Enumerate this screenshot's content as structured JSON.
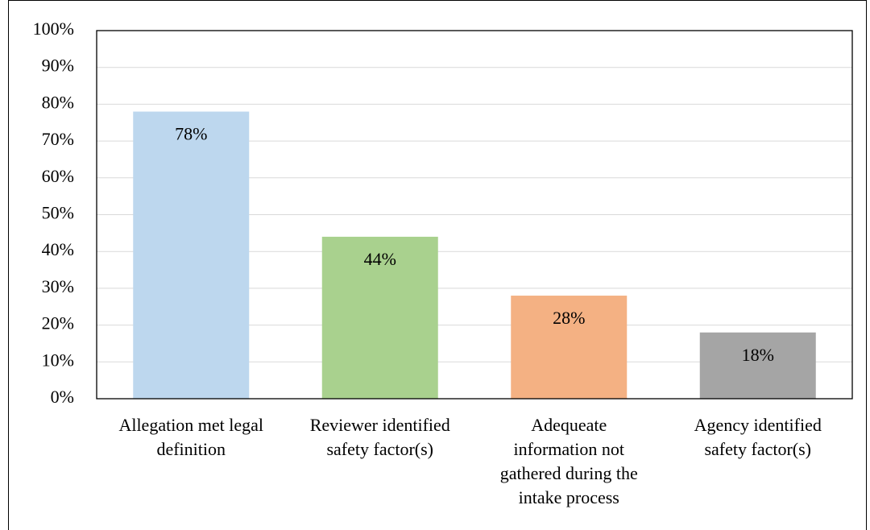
{
  "chart_data": {
    "type": "bar",
    "categories": [
      "Allegation met legal definition",
      "Reviewer identified safety factor(s)",
      "Adequeate information not gathered during the intake process",
      "Agency identified safety factor(s)"
    ],
    "values": [
      78,
      44,
      28,
      18
    ],
    "value_labels": [
      "78%",
      "44%",
      "28%",
      "18%"
    ],
    "colors": [
      "#bdd7ee",
      "#a9d18e",
      "#f4b183",
      "#a5a5a5"
    ],
    "ylim": [
      0,
      100
    ],
    "yticks": [
      {
        "value": 0,
        "label": "0%"
      },
      {
        "value": 10,
        "label": "10%"
      },
      {
        "value": 20,
        "label": "20%"
      },
      {
        "value": 30,
        "label": "30%"
      },
      {
        "value": 40,
        "label": "40%"
      },
      {
        "value": 50,
        "label": "50%"
      },
      {
        "value": 60,
        "label": "60%"
      },
      {
        "value": 70,
        "label": "70%"
      },
      {
        "value": 80,
        "label": "80%"
      },
      {
        "value": 90,
        "label": "90%"
      },
      {
        "value": 100,
        "label": "100%"
      }
    ],
    "grid": true
  }
}
